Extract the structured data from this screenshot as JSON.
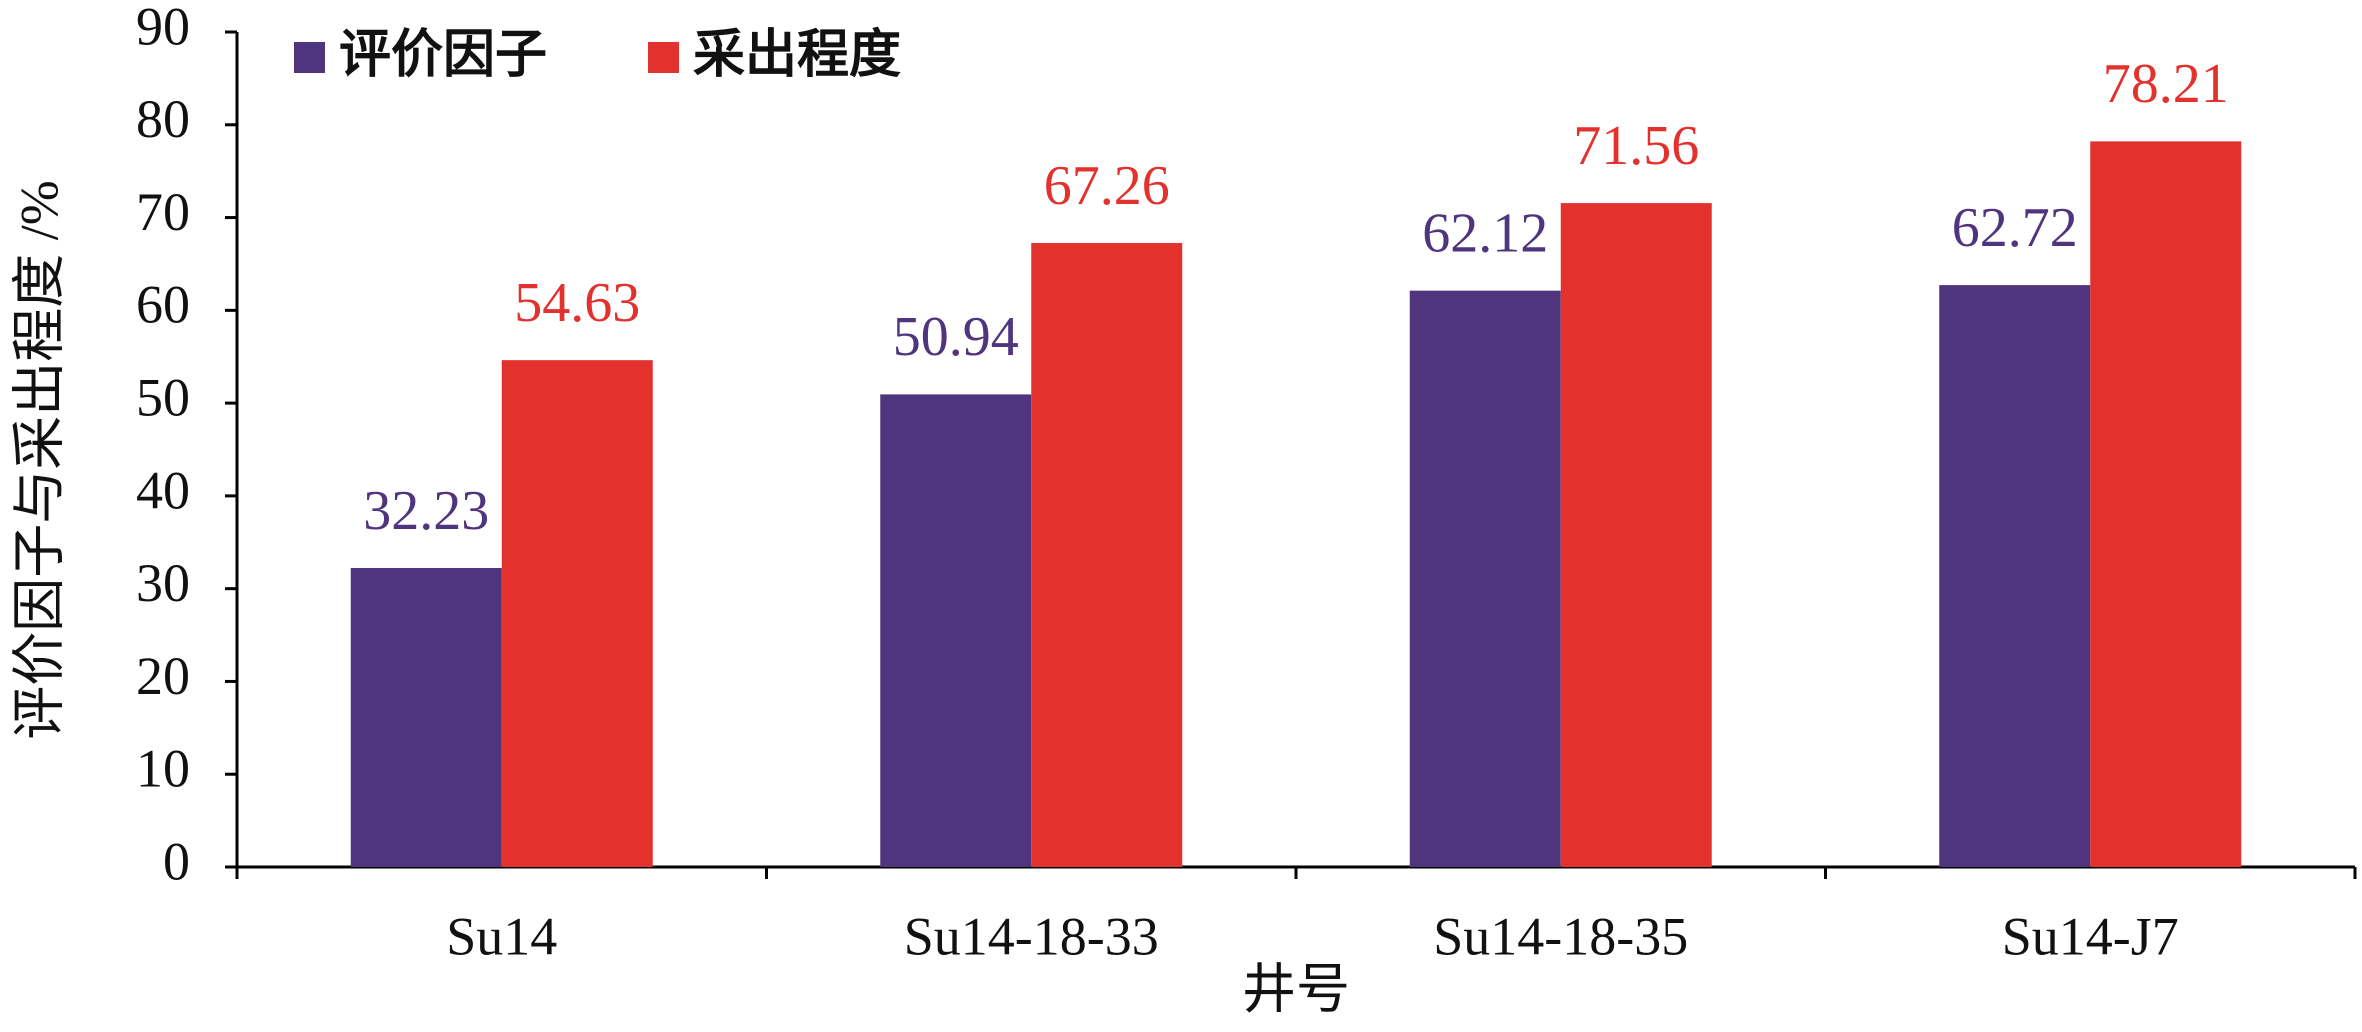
{
  "chart_data": {
    "type": "bar",
    "categories": [
      "Su14",
      "Su14-18-33",
      "Su14-18-35",
      "Su14-J7"
    ],
    "series": [
      {
        "name": "评价因子",
        "color": "#4f357e",
        "values": [
          32.23,
          50.94,
          62.12,
          62.72
        ]
      },
      {
        "name": "采出程度",
        "color": "#e3312d",
        "values": [
          54.63,
          67.26,
          71.56,
          78.21
        ]
      }
    ],
    "x_label": "井号",
    "y_label": "评价因子与采出程度 /%",
    "ylim": [
      0,
      90
    ],
    "yticks": [
      0,
      10,
      20,
      30,
      40,
      50,
      60,
      70,
      80,
      90
    ],
    "legend": "upper left"
  }
}
